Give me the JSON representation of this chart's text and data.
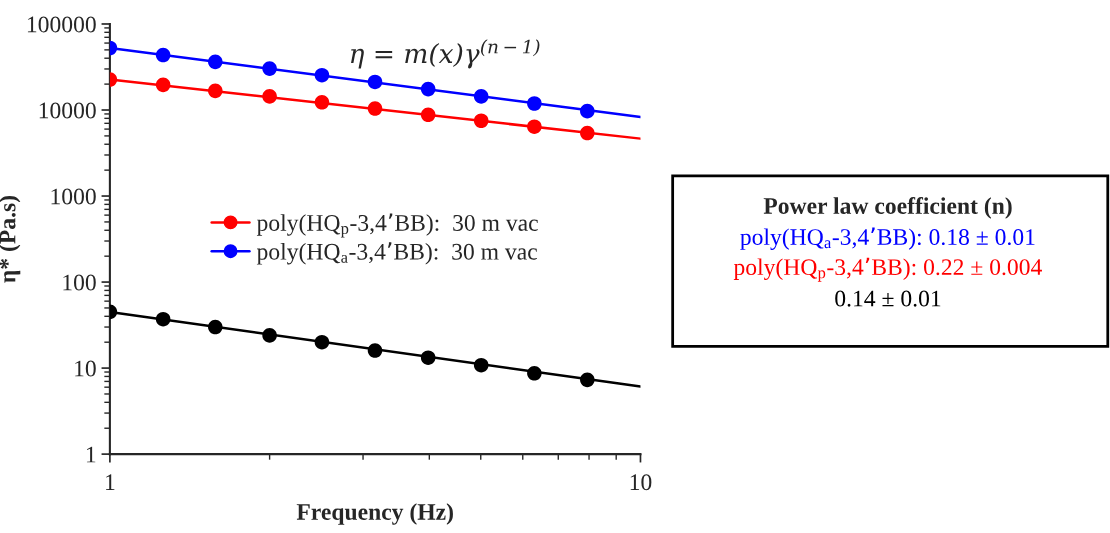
{
  "chart_data": {
    "type": "scatter",
    "xlabel": "Frequency (Hz)",
    "ylabel": "η* (Pa.s)",
    "log": "xy",
    "xlim": [
      1,
      10
    ],
    "xticks": [
      1,
      10
    ],
    "ylim": [
      1,
      100000
    ],
    "yticks": [
      1,
      10,
      100,
      1000,
      10000,
      100000
    ],
    "grid": false,
    "legend": "center",
    "marker": "circle",
    "series": [
      {
        "name": "poly(HQ$_{p}$-3,4’BB):  30 m vac",
        "color": "#ff0000",
        "x": [
          1,
          1.26,
          1.58,
          2,
          2.51,
          3.16,
          3.98,
          5.01,
          6.31,
          7.94
        ],
        "values": [
          22600,
          19600,
          16700,
          14400,
          12300,
          10400,
          8800,
          7500,
          6400,
          5400
        ]
      },
      {
        "name": "poly(HQ$_{a}$-3,4’BB):  30 m vac",
        "color": "#0000ff",
        "x": [
          1,
          1.26,
          1.58,
          2,
          2.51,
          3.16,
          3.98,
          5.01,
          6.31,
          7.94
        ],
        "values": [
          52600,
          43500,
          36300,
          30300,
          25400,
          21200,
          17500,
          14400,
          11900,
          9700
        ]
      },
      {
        "color": "#000000",
        "x": [
          1,
          1.26,
          1.58,
          2,
          2.51,
          3.16,
          3.98,
          5.01,
          6.31,
          7.94
        ],
        "values": [
          45,
          37,
          30,
          24,
          20,
          16,
          13.2,
          10.8,
          8.7,
          7.3
        ]
      },
      {
        "type": "line",
        "marker": "none",
        "color": "#ff0000",
        "x": [
          1,
          10
        ],
        "values": [
          22600,
          4650
        ]
      },
      {
        "type": "line",
        "marker": "none",
        "color": "#0000ff",
        "x": [
          1,
          10
        ],
        "values": [
          52600,
          8300
        ]
      },
      {
        "type": "line",
        "marker": "none",
        "color": "#000000",
        "x": [
          1,
          10
        ],
        "values": [
          45,
          6.1
        ]
      }
    ],
    "annotations": [
      "η = m(x)γ$^{(n−1)}$",
      "Power law coefficient (n)",
      "poly(HQ$_{a}$-3,4’BB): 0.18 ± 0.01",
      "poly(HQ$_{p}$-3,4’BB): 0.22 ± 0.004",
      "0.14 ± 0.01"
    ]
  }
}
